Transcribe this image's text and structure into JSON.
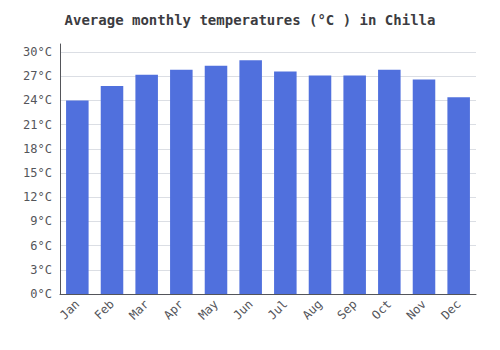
{
  "chart_data": {
    "type": "bar",
    "title": "Average monthly temperatures (°C ) in Chilla",
    "categories": [
      "Jan",
      "Feb",
      "Mar",
      "Apr",
      "May",
      "Jun",
      "Jul",
      "Aug",
      "Sep",
      "Oct",
      "Nov",
      "Dec"
    ],
    "values": [
      24.0,
      25.8,
      27.2,
      27.8,
      28.3,
      29.0,
      27.6,
      27.1,
      27.1,
      27.8,
      26.6,
      24.4
    ],
    "ylim": [
      0,
      31
    ],
    "yticks": [
      {
        "value": 0,
        "label": "0°C"
      },
      {
        "value": 3,
        "label": "3°C"
      },
      {
        "value": 6,
        "label": "6°C"
      },
      {
        "value": 9,
        "label": "9°C"
      },
      {
        "value": 12,
        "label": "12°C"
      },
      {
        "value": 15,
        "label": "15°C"
      },
      {
        "value": 18,
        "label": "18°C"
      },
      {
        "value": 21,
        "label": "21°C"
      },
      {
        "value": 24,
        "label": "24°C"
      },
      {
        "value": 27,
        "label": "27°C"
      },
      {
        "value": 30,
        "label": "30°C"
      }
    ],
    "grid": true
  }
}
